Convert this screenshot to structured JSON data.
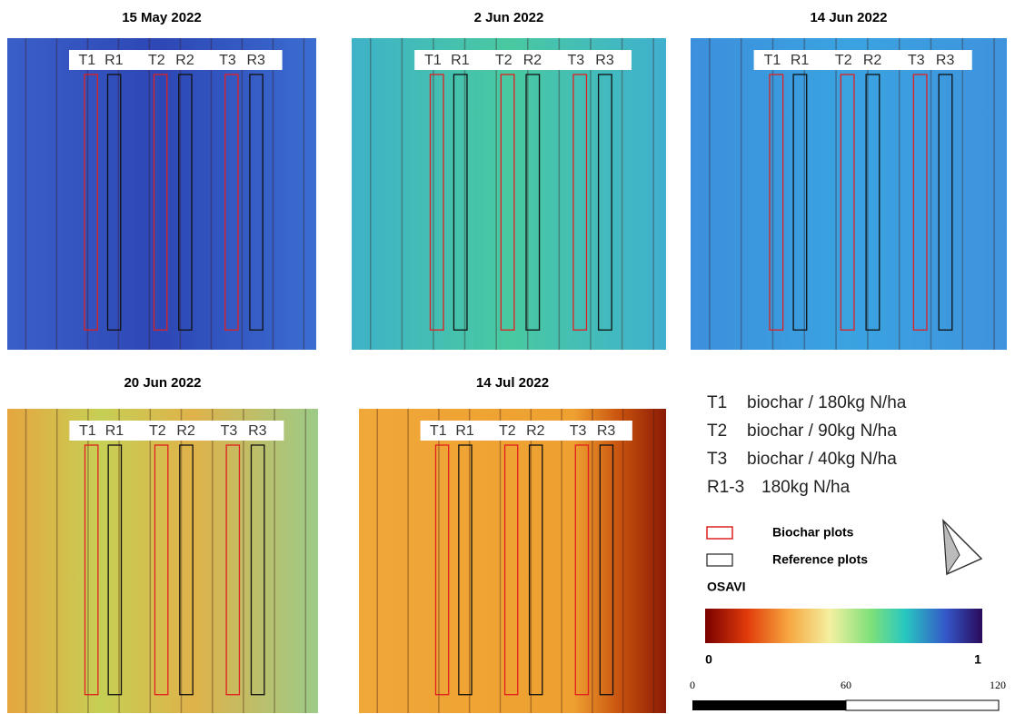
{
  "panels": [
    {
      "title": "15 May 2022",
      "plot_labels": [
        "T1",
        "R1",
        "T2",
        "R2",
        "T3",
        "R3"
      ]
    },
    {
      "title": "2 Jun 2022",
      "plot_labels": [
        "T1",
        "R1",
        "T2",
        "R2",
        "T3",
        "R3"
      ]
    },
    {
      "title": "14 Jun 2022",
      "plot_labels": [
        "T1",
        "R1",
        "T2",
        "R2",
        "T3",
        "R3"
      ]
    },
    {
      "title": "20 Jun 2022",
      "plot_labels": [
        "T1",
        "R1",
        "T2",
        "R2",
        "T3",
        "R3"
      ]
    },
    {
      "title": "14 Jul 2022",
      "plot_labels": [
        "T1",
        "R1",
        "T2",
        "R2",
        "T3",
        "R3"
      ]
    }
  ],
  "legend": {
    "treatments": [
      {
        "code": "T1",
        "desc": "biochar / 180kg N/ha"
      },
      {
        "code": "T2",
        "desc": "biochar / 90kg N/ha"
      },
      {
        "code": "T3",
        "desc": "biochar / 40kg N/ha"
      },
      {
        "code": "R1-3",
        "desc": "180kg N/ha"
      }
    ],
    "biochar": "Biochar plots",
    "reference": "Reference plots",
    "index_title": "OSAVI",
    "colorbar_min": 0,
    "colorbar_max": 1
  },
  "scale_bar": {
    "ticks": [
      0,
      60,
      120
    ]
  }
}
